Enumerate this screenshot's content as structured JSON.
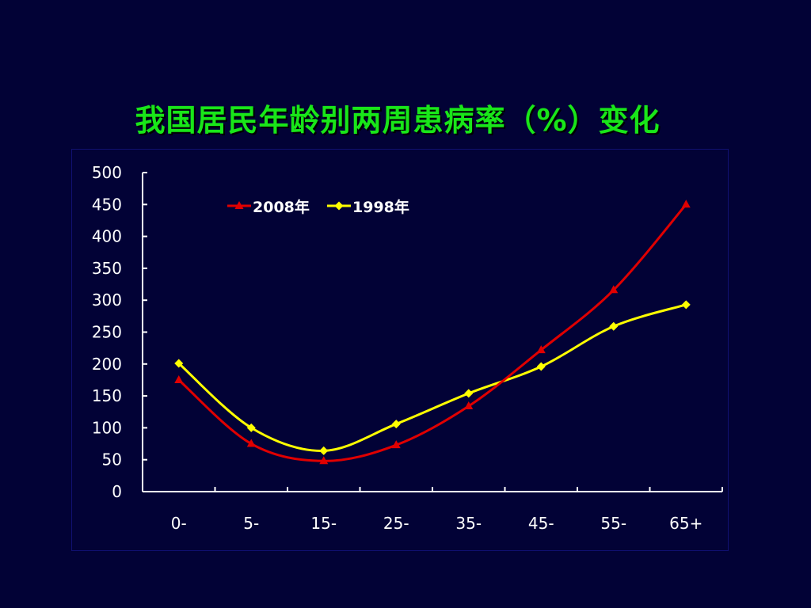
{
  "slide": {
    "title": "我国居民年龄别两周患病率（%）变化"
  },
  "colors": {
    "background": "#020236",
    "title": "#19e619",
    "axis": "#ffffff",
    "frame": "#101070"
  },
  "chart_data": {
    "type": "line",
    "title": "",
    "xlabel": "",
    "ylabel": "",
    "categories": [
      "0-",
      "5-",
      "15-",
      "25-",
      "35-",
      "45-",
      "55-",
      "65+"
    ],
    "ylim": [
      0,
      500
    ],
    "yticks": [
      0,
      50,
      100,
      150,
      200,
      250,
      300,
      350,
      400,
      450,
      500
    ],
    "grid": false,
    "legend_position": "top-left",
    "series": [
      {
        "name": "2008年",
        "color": "#e00000",
        "marker": "triangle",
        "values": [
          175,
          75,
          48,
          73,
          134,
          222,
          316,
          450
        ]
      },
      {
        "name": "1998年",
        "color": "#ffff00",
        "marker": "diamond",
        "values": [
          201,
          100,
          64,
          106,
          154,
          196,
          259,
          293
        ]
      }
    ]
  }
}
